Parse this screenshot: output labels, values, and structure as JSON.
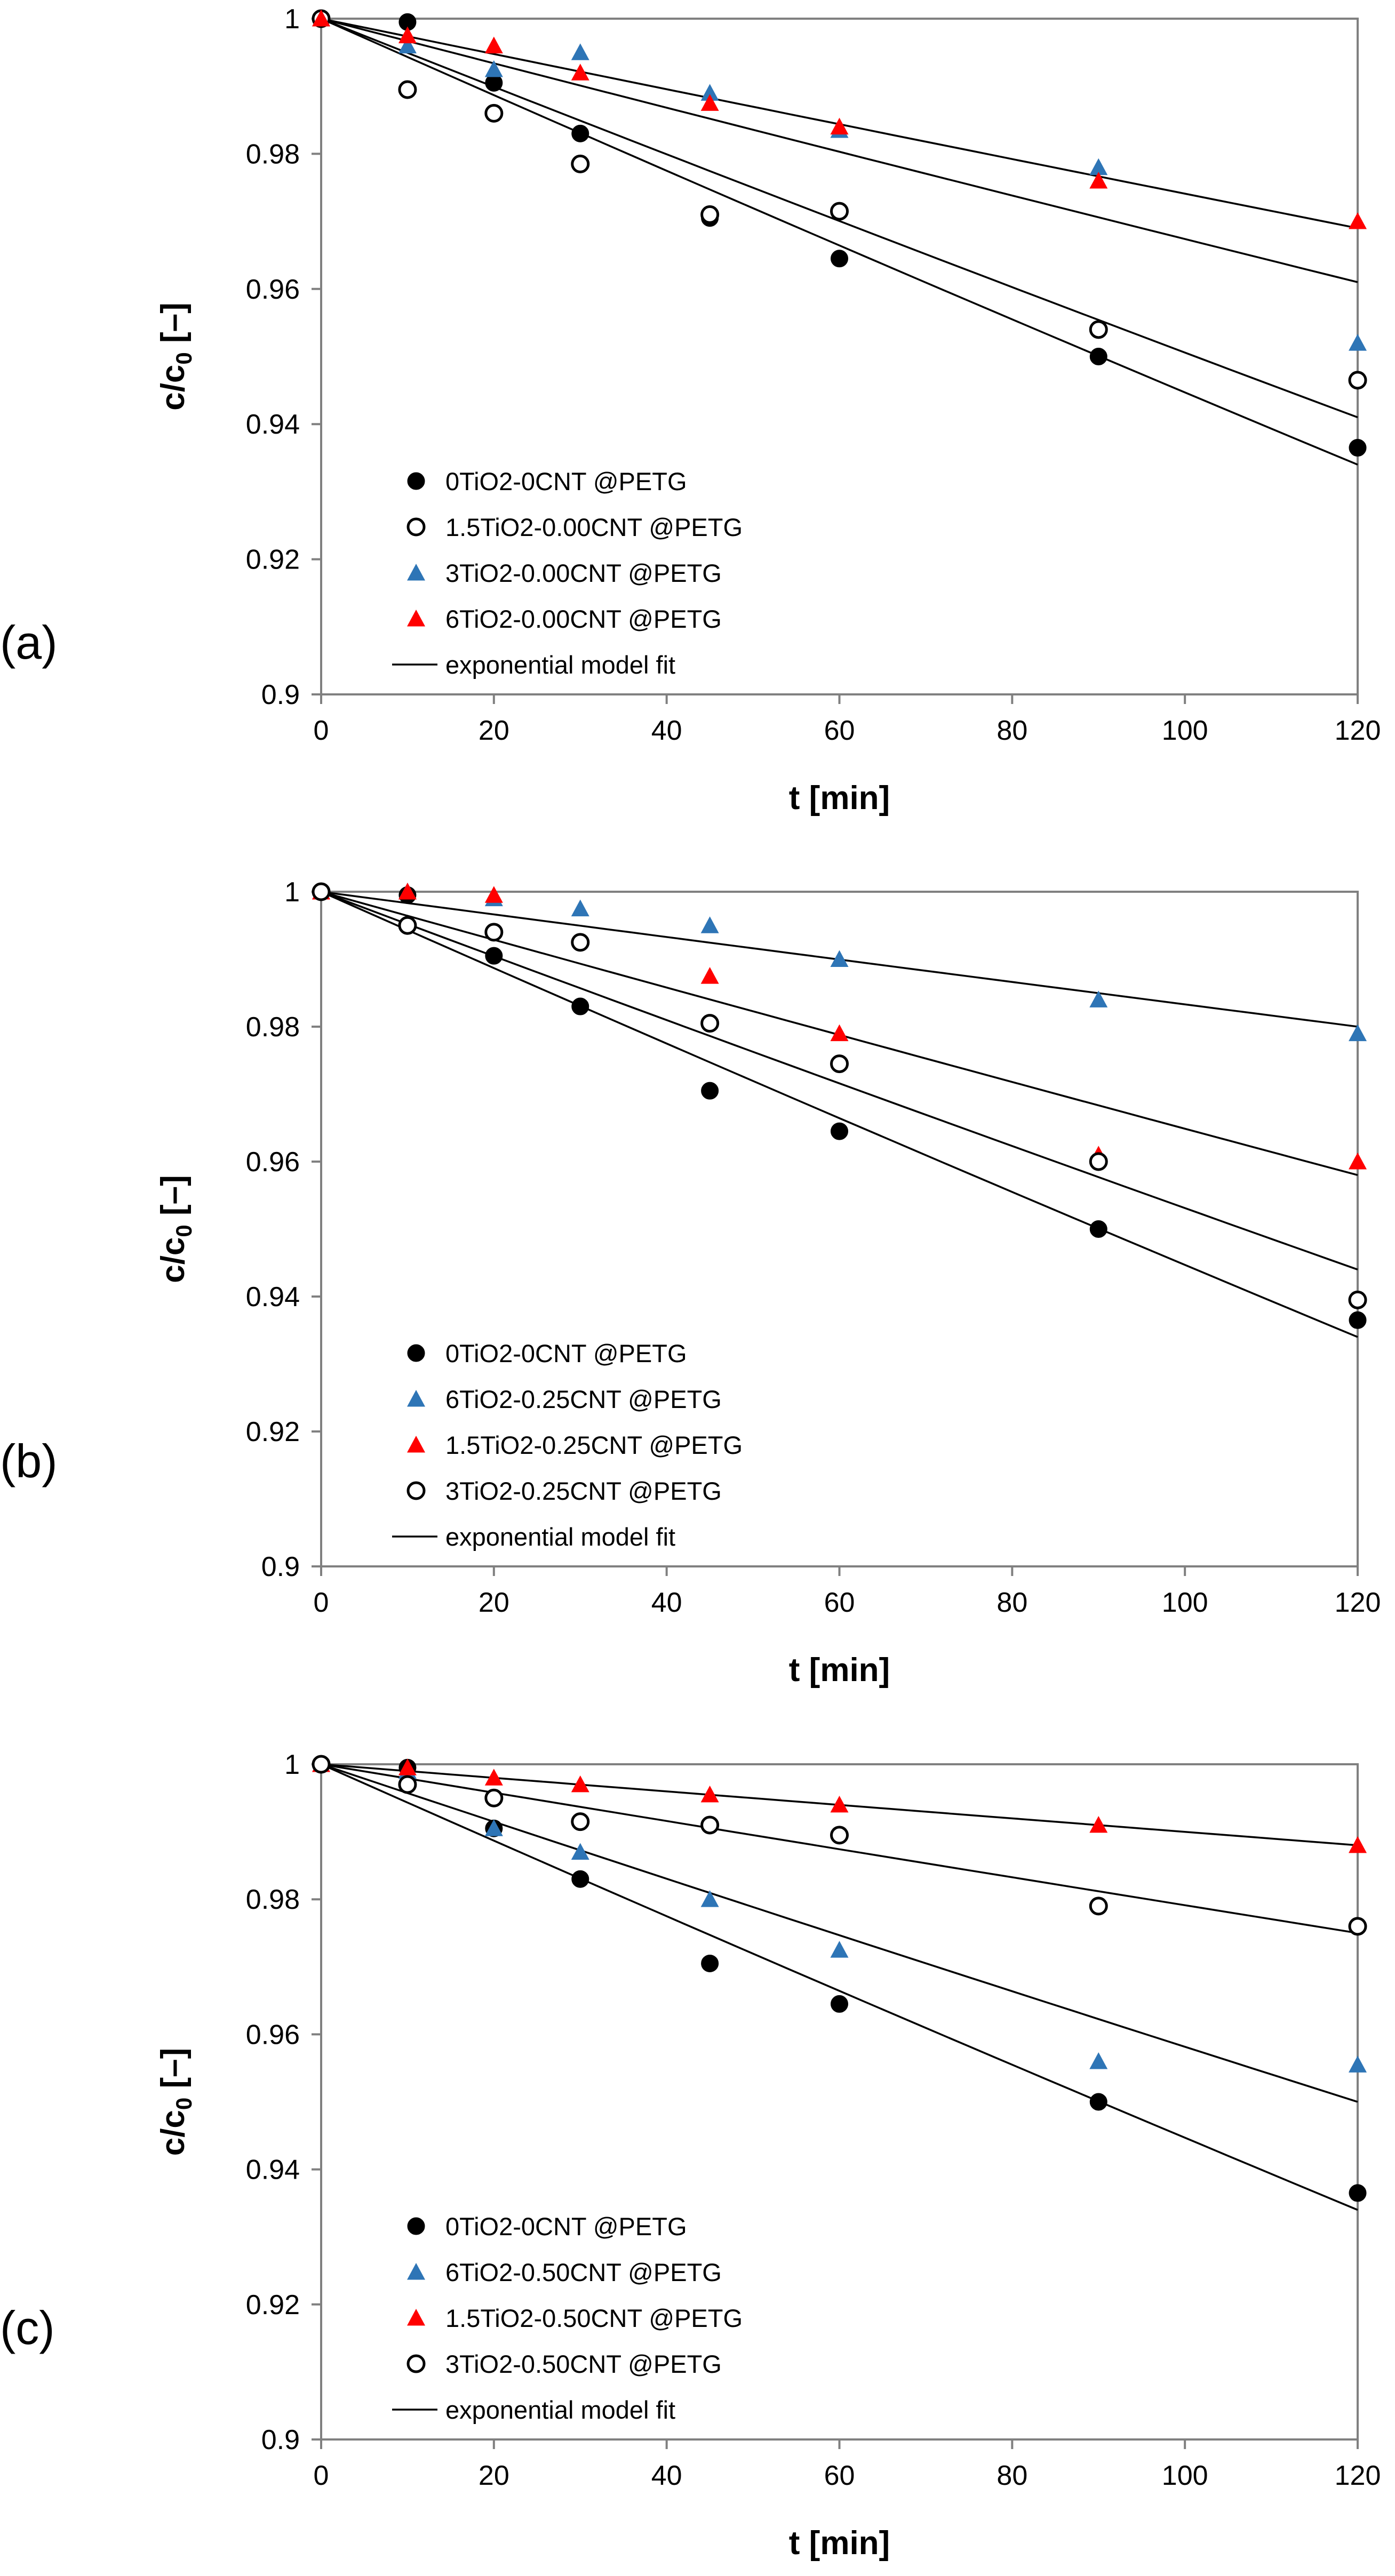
{
  "chart_data": [
    {
      "type": "scatter",
      "panel_label": "(a)",
      "xlabel": "t [min]",
      "ylabel": {
        "main": "c/c",
        "sub": "0",
        "unit": " [–]"
      },
      "xlim": [
        0,
        120
      ],
      "ylim": [
        0.9,
        1.0
      ],
      "xticks": [
        "0",
        "20",
        "40",
        "60",
        "80",
        "100",
        "120"
      ],
      "yticks": [
        "0.9",
        "0.92",
        "0.94",
        "0.96",
        "0.98",
        "1"
      ],
      "legend_position": "bottom-left",
      "fit_label": "exponential model fit",
      "x": [
        0,
        10,
        20,
        30,
        45,
        60,
        90,
        120
      ],
      "series": [
        {
          "name": "0TiO2-0CNT @PETG",
          "marker": "filled-circle",
          "color": "#000000",
          "values": [
            1.0,
            0.9995,
            0.9905,
            0.983,
            0.9705,
            0.9645,
            0.95,
            0.9365
          ],
          "fit_end": 0.934
        },
        {
          "name": "1.5TiO2-0.00CNT @PETG",
          "marker": "open-circle",
          "color": "#000000",
          "values": [
            1.0,
            0.9895,
            0.986,
            0.9785,
            0.971,
            0.9715,
            0.954,
            0.9465
          ],
          "fit_end": 0.941
        },
        {
          "name": "3TiO2-0.00CNT @PETG",
          "marker": "triangle",
          "color": "#2e75b6",
          "values": [
            1.0,
            0.996,
            0.9925,
            0.995,
            0.989,
            0.9835,
            0.978,
            0.952
          ],
          "fit_end": 0.961
        },
        {
          "name": "6TiO2-0.00CNT @PETG",
          "marker": "triangle",
          "color": "#ff0000",
          "values": [
            1.0,
            0.9975,
            0.996,
            0.992,
            0.9875,
            0.984,
            0.976,
            0.97
          ],
          "fit_end": 0.969
        }
      ]
    },
    {
      "type": "scatter",
      "panel_label": "(b)",
      "xlabel": "t [min]",
      "ylabel": {
        "main": "c/c",
        "sub": "0",
        "unit": " [–]"
      },
      "xlim": [
        0,
        120
      ],
      "ylim": [
        0.9,
        1.0
      ],
      "xticks": [
        "0",
        "20",
        "40",
        "60",
        "80",
        "100",
        "120"
      ],
      "yticks": [
        "0.9",
        "0.92",
        "0.94",
        "0.96",
        "0.98",
        "1"
      ],
      "legend_position": "bottom-left",
      "fit_label": "exponential model fit",
      "x": [
        0,
        10,
        20,
        30,
        45,
        60,
        90,
        120
      ],
      "series": [
        {
          "name": "0TiO2-0CNT @PETG",
          "marker": "filled-circle",
          "color": "#000000",
          "values": [
            1.0,
            0.9995,
            0.9905,
            0.983,
            0.9705,
            0.9645,
            0.95,
            0.9365
          ],
          "fit_end": 0.934
        },
        {
          "name": "6TiO2-0.25CNT @PETG",
          "marker": "triangle",
          "color": "#2e75b6",
          "values": [
            1.0,
            1.0,
            0.999,
            0.9975,
            0.995,
            0.99,
            0.984,
            0.979
          ],
          "fit_end": 0.98
        },
        {
          "name": "1.5TiO2-0.25CNT @PETG",
          "marker": "triangle",
          "color": "#ff0000",
          "values": [
            1.0,
            1.0,
            0.9995,
            null,
            0.9875,
            0.979,
            0.961,
            0.96
          ],
          "fit_end": 0.958
        },
        {
          "name": "3TiO2-0.25CNT @PETG",
          "marker": "open-circle",
          "color": "#000000",
          "values": [
            1.0,
            0.995,
            0.994,
            0.9925,
            0.9805,
            0.9745,
            0.96,
            0.9395
          ],
          "fit_end": 0.944
        }
      ]
    },
    {
      "type": "scatter",
      "panel_label": "(c)",
      "xlabel": "t [min]",
      "ylabel": {
        "main": "c/c",
        "sub": "0",
        "unit": " [–]"
      },
      "xlim": [
        0,
        120
      ],
      "ylim": [
        0.9,
        1.0
      ],
      "xticks": [
        "0",
        "20",
        "40",
        "60",
        "80",
        "100",
        "120"
      ],
      "yticks": [
        "0.9",
        "0.92",
        "0.94",
        "0.96",
        "0.98",
        "1"
      ],
      "legend_position": "bottom-left",
      "fit_label": "exponential model fit",
      "x": [
        0,
        10,
        20,
        30,
        45,
        60,
        90,
        120
      ],
      "series": [
        {
          "name": "0TiO2-0CNT @PETG",
          "marker": "filled-circle",
          "color": "#000000",
          "values": [
            1.0,
            0.9995,
            0.9905,
            0.983,
            0.9705,
            0.9645,
            0.95,
            0.9365
          ],
          "fit_end": 0.934
        },
        {
          "name": "6TiO2-0.50CNT @PETG",
          "marker": "triangle",
          "color": "#2e75b6",
          "values": [
            1.0,
            0.999,
            0.9905,
            0.987,
            0.98,
            0.9725,
            0.956,
            0.9555
          ],
          "fit_end": 0.95
        },
        {
          "name": "1.5TiO2-0.50CNT @PETG",
          "marker": "triangle",
          "color": "#ff0000",
          "values": [
            1.0,
            0.9995,
            0.998,
            0.997,
            0.9955,
            0.994,
            0.991,
            0.988
          ],
          "fit_end": 0.988
        },
        {
          "name": "3TiO2-0.50CNT @PETG",
          "marker": "open-circle",
          "color": "#000000",
          "values": [
            1.0,
            0.997,
            0.995,
            0.9915,
            0.991,
            0.9895,
            0.979,
            0.976
          ],
          "fit_end": 0.975
        }
      ]
    }
  ]
}
